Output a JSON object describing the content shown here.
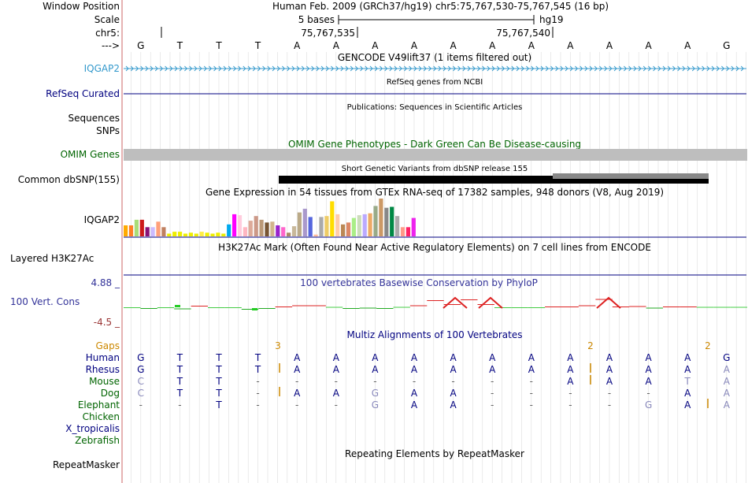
{
  "header": {
    "window_position_label": "Window Position",
    "scale_label": "Scale",
    "chrom_label": "chr5:",
    "strand_label": "--->",
    "assembly": "Human Feb. 2009 (GRCh37/hg19)",
    "position": "chr5:75,767,530-75,767,545 (16 bp)",
    "scale_text": "5 bases",
    "assembly_short": "hg19",
    "ruler_labels": [
      "75,767,535",
      "75,767,540"
    ]
  },
  "bases": [
    "G",
    "T",
    "T",
    "T",
    "A",
    "A",
    "A",
    "A",
    "A",
    "A",
    "A",
    "A",
    "A",
    "A",
    "A",
    "G"
  ],
  "tracks": {
    "gencode": {
      "title": "GENCODE V49lift37 (1 items filtered out)",
      "label": "IQGAP2"
    },
    "refseq": {
      "title": "RefSeq genes from NCBI",
      "label": "RefSeq Curated"
    },
    "publications": {
      "title": "Publications: Sequences in Scientific Articles",
      "label": "Sequences"
    },
    "snps": {
      "label": "SNPs"
    },
    "omim": {
      "title": "OMIM Gene Phenotypes - Dark Green Can Be Disease-causing",
      "label": "OMIM Genes"
    },
    "dbsnp": {
      "title": "Short Genetic Variants from dbSNP release 155",
      "label": "Common dbSNP(155)"
    },
    "gtex": {
      "title": "Gene Expression in 54 tissues from GTEx RNA-seq of 17382 samples, 948 donors (V8, Aug 2019)",
      "label": "IQGAP2"
    },
    "h3k27ac": {
      "title": "H3K27Ac Mark (Often Found Near Active Regulatory Elements) on 7 cell lines from ENCODE",
      "label": "Layered H3K27Ac"
    },
    "phylop": {
      "title": "100 vertebrates Basewise Conservation by PhyloP",
      "label": "100 Vert. Cons",
      "max_label": "4.88 _",
      "min_label": "-4.5 _"
    },
    "multiz": {
      "title": "Multiz Alignments of 100 Vertebrates",
      "gaps_label": "Gaps",
      "gap_counts": [
        "3",
        "2",
        "2"
      ]
    },
    "repeatmasker": {
      "title": "Repeating Elements by RepeatMasker",
      "label": "RepeatMasker"
    }
  },
  "alignment": [
    {
      "species": "Human",
      "color": "#000080",
      "bases": [
        "G",
        "T",
        "T",
        "T",
        "A",
        "A",
        "A",
        "A",
        "A",
        "A",
        "A",
        "A",
        "A",
        "A",
        "A",
        "G"
      ]
    },
    {
      "species": "Rhesus",
      "color": "#000080",
      "bases": [
        "G",
        "T",
        "T",
        "T",
        "A",
        "A",
        "A",
        "A",
        "A",
        "A",
        "A",
        "A",
        "A",
        "A",
        "A",
        "A"
      ]
    },
    {
      "species": "Mouse",
      "color": "#006400",
      "bases": [
        "C",
        "T",
        "T",
        "-",
        "-",
        "-",
        "-",
        "-",
        "-",
        "-",
        "-",
        "A",
        "A",
        "A",
        "T",
        "A"
      ]
    },
    {
      "species": "Dog",
      "color": "#006400",
      "bases": [
        "C",
        "T",
        "T",
        "-",
        "A",
        "A",
        "G",
        "A",
        "A",
        "-",
        "-",
        "-",
        "-",
        "-",
        "A",
        "A"
      ]
    },
    {
      "species": "Elephant",
      "color": "#006400",
      "bases": [
        "-",
        "-",
        "T",
        "-",
        "-",
        "-",
        "G",
        "A",
        "A",
        "-",
        "-",
        "-",
        "-",
        "G",
        "A",
        "A"
      ]
    },
    {
      "species": "Chicken",
      "color": "#006400",
      "bases": []
    },
    {
      "species": "X_tropicalis",
      "color": "#000080",
      "bases": []
    },
    {
      "species": "Zebrafish",
      "color": "#006400",
      "bases": []
    }
  ],
  "gtex_expression": [
    12,
    12,
    18,
    18,
    10,
    10,
    16,
    10,
    3,
    5,
    5,
    3,
    4,
    3,
    5,
    4,
    3,
    4,
    3,
    13,
    24,
    23,
    10,
    17,
    22,
    18,
    15,
    16,
    12,
    10,
    4,
    11,
    26,
    30,
    21,
    2,
    21,
    22,
    38,
    24,
    13,
    15,
    20,
    23,
    24,
    25,
    33,
    41,
    31,
    32,
    22,
    10,
    10,
    20
  ],
  "gtex_colors": [
    "#ffaa00",
    "#ff7f24",
    "#aadd77",
    "#cc1a1a",
    "#881177",
    "#ccbbff",
    "#ffa07a",
    "#c08060",
    "#eeee00",
    "#eeee00",
    "#eeee00",
    "#eeee00",
    "#eeee00",
    "#eeee00",
    "#ffee44",
    "#eeee00",
    "#eeee00",
    "#eeee00",
    "#eeee00",
    "#00aaee",
    "#ff00ff",
    "#ffccdd",
    "#ffb6c1",
    "#ddaa99",
    "#cc9988",
    "#bb9977",
    "#775533",
    "#d2b48c",
    "#9922cc",
    "#ff66cc",
    "#aa8866",
    "#c8b89a",
    "#bbaa88",
    "#aa99cc",
    "#5566dd",
    "#ffbb99",
    "#aaaaaa",
    "#eecc66",
    "#ffdd00",
    "#ffccaa",
    "#bb8855",
    "#dd8866",
    "#aaee88",
    "#ccddbb",
    "#bbaaff",
    "#eeaa66",
    "#99aa88",
    "#cc9966",
    "#888888",
    "#008844",
    "#aaaaaa",
    "#ff9988",
    "#ff2266",
    "#ee22ee"
  ],
  "phylop_values": [
    0.1,
    -0.1,
    0.1,
    -0.2,
    0.5,
    0.1,
    0.1,
    -0.3,
    -0.1,
    0.3,
    0.6,
    0.6,
    0.2,
    -0.1,
    0,
    -0.1,
    0.2,
    0.6,
    1.9,
    0.9,
    2.1,
    0.9,
    0.1,
    0.1,
    0.1,
    0.3,
    0.3,
    0.6,
    2.2,
    0.3,
    0.4,
    0,
    0.3,
    0.3,
    0.2,
    0.2,
    0.2
  ]
}
